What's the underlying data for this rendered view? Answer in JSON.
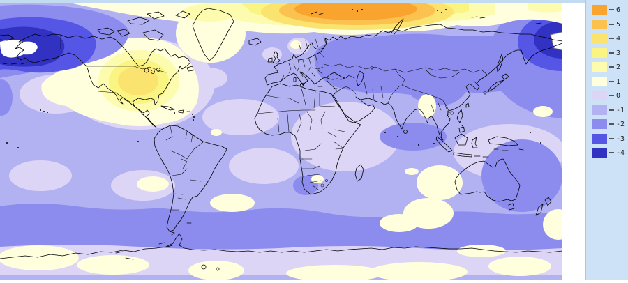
{
  "page": {
    "background": "#ffffff",
    "top_strip_color": "#c2dbf1",
    "divider_color": "#a4c9e9"
  },
  "legend": {
    "panel_color": "#cde2f7",
    "text_color": "#222222",
    "tick_color": "#555555",
    "entries": [
      {
        "value": "6",
        "color": "#f8a42f"
      },
      {
        "value": "5",
        "color": "#fbc250"
      },
      {
        "value": "4",
        "color": "#fae36e"
      },
      {
        "value": "3",
        "color": "#faf482"
      },
      {
        "value": "2",
        "color": "#fdfcae"
      },
      {
        "value": "1",
        "color": "#fffedd"
      },
      {
        "value": "0",
        "color": "#ddd5f6"
      },
      {
        "value": "-1",
        "color": "#b2b2f2"
      },
      {
        "value": "-2",
        "color": "#8c8cee"
      },
      {
        "value": "-3",
        "color": "#5656e6"
      },
      {
        "value": "-4",
        "color": "#3232c2"
      }
    ]
  },
  "map": {
    "kind": "filled-contour world anomaly map",
    "base_band": "-1",
    "below_scale_color": "#ffffff",
    "coastline_color": "#000000",
    "warm_regions": [
      "arctic siberia maximum (orange, band 5-6)",
      "central north america (bands 1-4)",
      "greenland (band 1-2)"
    ],
    "cold_regions": [
      "bering sea / alaska (below -4, white core)",
      "northeast siberia coast (below -4, white core)",
      "southern ocean band (-2)"
    ]
  }
}
